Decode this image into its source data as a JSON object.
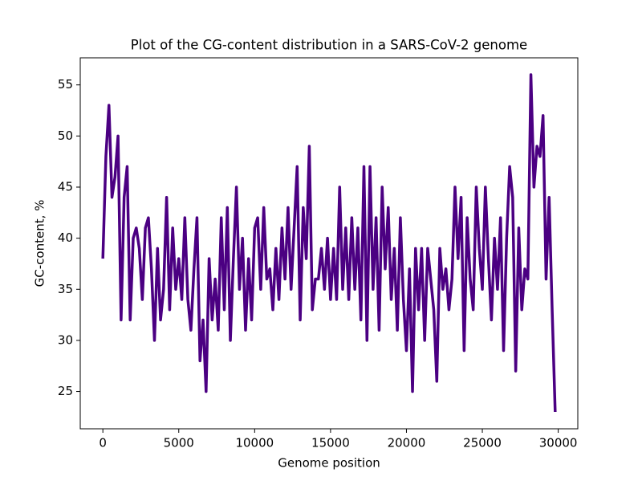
{
  "chart_data": {
    "type": "line",
    "title": "Plot of the CG-content distribution in a SARS-CoV-2 genome",
    "x_label": "Genome position",
    "y_label": "GC-content, %",
    "x": [
      0,
      200,
      400,
      600,
      800,
      1000,
      1200,
      1400,
      1600,
      1800,
      2000,
      2200,
      2400,
      2600,
      2800,
      3000,
      3200,
      3400,
      3600,
      3800,
      4000,
      4200,
      4400,
      4600,
      4800,
      5000,
      5200,
      5400,
      5600,
      5800,
      6000,
      6200,
      6400,
      6600,
      6800,
      7000,
      7200,
      7400,
      7600,
      7800,
      8000,
      8200,
      8400,
      8600,
      8800,
      9000,
      9200,
      9400,
      9600,
      9800,
      10000,
      10200,
      10400,
      10600,
      10800,
      11000,
      11200,
      11400,
      11600,
      11800,
      12000,
      12200,
      12400,
      12600,
      12800,
      13000,
      13200,
      13400,
      13600,
      13800,
      14000,
      14200,
      14400,
      14600,
      14800,
      15000,
      15200,
      15400,
      15600,
      15800,
      16000,
      16200,
      16400,
      16600,
      16800,
      17000,
      17200,
      17400,
      17600,
      17800,
      18000,
      18200,
      18400,
      18600,
      18800,
      19000,
      19200,
      19400,
      19600,
      19800,
      20000,
      20200,
      20400,
      20600,
      20800,
      21000,
      21200,
      21400,
      21600,
      21800,
      22000,
      22200,
      22400,
      22600,
      22800,
      23000,
      23200,
      23400,
      23600,
      23800,
      24000,
      24200,
      24400,
      24600,
      24800,
      25000,
      25200,
      25400,
      25600,
      25800,
      26000,
      26200,
      26400,
      26600,
      26800,
      27000,
      27200,
      27400,
      27600,
      27800,
      28000,
      28200,
      28400,
      28600,
      28800,
      29000,
      29200,
      29400,
      29600,
      29800
    ],
    "series": [
      {
        "color": "#4b0082",
        "values": [
          38,
          48,
          53,
          44,
          46,
          50,
          32,
          44,
          47,
          32,
          40,
          41,
          39,
          34,
          41,
          42,
          37,
          30,
          39,
          32,
          35,
          44,
          33,
          41,
          35,
          38,
          34,
          42,
          34,
          31,
          37,
          42,
          28,
          32,
          25,
          38,
          32,
          36,
          31,
          42,
          33,
          43,
          30,
          38,
          45,
          35,
          40,
          31,
          38,
          32,
          41,
          42,
          35,
          43,
          36,
          37,
          33,
          39,
          34,
          41,
          36,
          43,
          35,
          41,
          47,
          32,
          43,
          38,
          49,
          33,
          36,
          36,
          39,
          35,
          40,
          34,
          39,
          34,
          45,
          35,
          41,
          34,
          42,
          35,
          41,
          32,
          47,
          30,
          47,
          35,
          42,
          31,
          45,
          37,
          43,
          34,
          39,
          31,
          42,
          34,
          29,
          37,
          25,
          39,
          33,
          39,
          30,
          39,
          36,
          33,
          26,
          39,
          35,
          37,
          33,
          36,
          45,
          38,
          44,
          29,
          42,
          36,
          33,
          45,
          39,
          35,
          45,
          38,
          32,
          40,
          35,
          42,
          29,
          40,
          47,
          44,
          27,
          41,
          33,
          37,
          36,
          56,
          45,
          49,
          48,
          52,
          36,
          44,
          33,
          23
        ]
      }
    ],
    "xlim": [
      -1490,
      31290
    ],
    "xticks": [
      0,
      5000,
      10000,
      15000,
      20000,
      25000,
      30000
    ],
    "ylim": [
      21.35,
      57.65
    ],
    "yticks": [
      25,
      30,
      35,
      40,
      45,
      50,
      55
    ],
    "grid": false
  }
}
